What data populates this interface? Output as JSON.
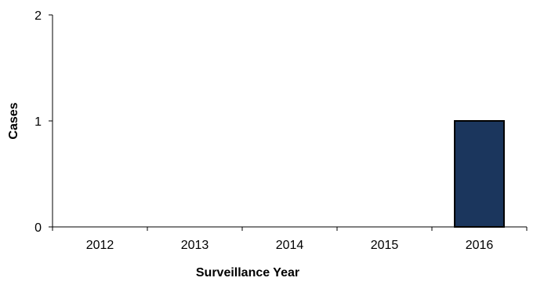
{
  "chart_data": {
    "type": "bar",
    "categories": [
      "2012",
      "2013",
      "2014",
      "2015",
      "2016"
    ],
    "values": [
      0,
      0,
      0,
      0,
      1
    ],
    "title": "",
    "xlabel": "Surveillance Year",
    "ylabel": "Cases",
    "ylim": [
      0,
      2
    ],
    "yticks": [
      0,
      1,
      2
    ],
    "grid": false,
    "bar_color": "#1b365d",
    "bar_edge_color": "#000000"
  }
}
